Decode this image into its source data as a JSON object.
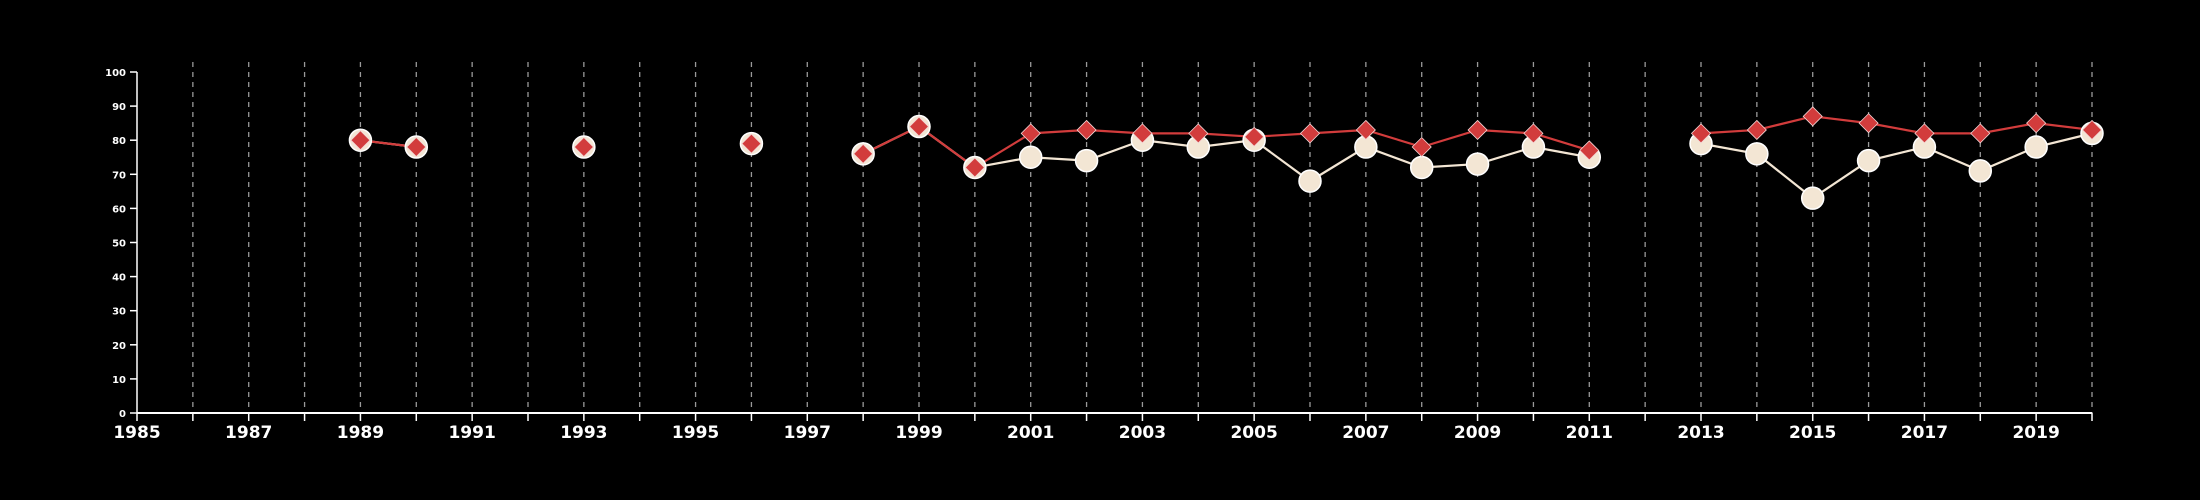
{
  "chart_data": {
    "type": "line",
    "title": "",
    "xlabel": "",
    "ylabel": "",
    "xlim": [
      1985,
      2020
    ],
    "ylim": [
      0,
      100
    ],
    "y_ticks": [
      0,
      10,
      20,
      30,
      40,
      50,
      60,
      70,
      80,
      90,
      100
    ],
    "x_tick_labels": [
      1985,
      1987,
      1989,
      1991,
      1993,
      1995,
      1997,
      1999,
      2001,
      2003,
      2005,
      2007,
      2009,
      2011,
      2013,
      2015,
      2017,
      2019
    ],
    "vertical_gridlines": "dashed, every year",
    "background": "#000000",
    "series": [
      {
        "marker": "circle",
        "color": "#f3e6d4",
        "points": [
          [
            1989,
            80
          ],
          [
            1990,
            78
          ],
          [
            1993,
            78
          ],
          [
            1996,
            79
          ],
          [
            1998,
            76
          ],
          [
            1999,
            84
          ],
          [
            2000,
            72
          ],
          [
            2001,
            75
          ],
          [
            2002,
            74
          ],
          [
            2003,
            80
          ],
          [
            2004,
            78
          ],
          [
            2005,
            80
          ],
          [
            2006,
            68
          ],
          [
            2007,
            78
          ],
          [
            2008,
            72
          ],
          [
            2009,
            73
          ],
          [
            2010,
            78
          ],
          [
            2011,
            75
          ],
          [
            2013,
            79
          ],
          [
            2014,
            76
          ],
          [
            2015,
            63
          ],
          [
            2016,
            74
          ],
          [
            2017,
            78
          ],
          [
            2018,
            71
          ],
          [
            2019,
            78
          ],
          [
            2020,
            82
          ]
        ]
      },
      {
        "marker": "diamond",
        "color": "#d23c3c",
        "points": [
          [
            1989,
            80
          ],
          [
            1990,
            78
          ],
          [
            1993,
            78
          ],
          [
            1996,
            79
          ],
          [
            1998,
            76
          ],
          [
            1999,
            84
          ],
          [
            2000,
            72
          ],
          [
            2001,
            82
          ],
          [
            2002,
            83
          ],
          [
            2003,
            82
          ],
          [
            2004,
            82
          ],
          [
            2005,
            81
          ],
          [
            2006,
            82
          ],
          [
            2007,
            83
          ],
          [
            2008,
            78
          ],
          [
            2009,
            83
          ],
          [
            2010,
            82
          ],
          [
            2011,
            77
          ],
          [
            2013,
            82
          ],
          [
            2014,
            83
          ],
          [
            2015,
            87
          ],
          [
            2016,
            85
          ],
          [
            2017,
            82
          ],
          [
            2018,
            82
          ],
          [
            2019,
            85
          ],
          [
            2020,
            83
          ]
        ]
      }
    ]
  }
}
